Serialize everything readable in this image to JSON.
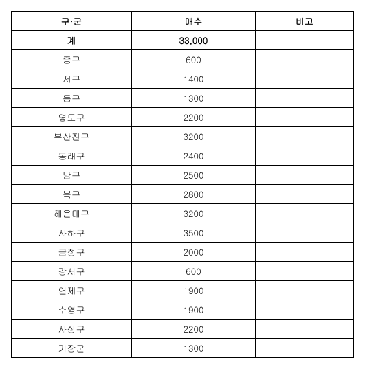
{
  "table": {
    "columns": [
      {
        "key": "district",
        "label": "구·군"
      },
      {
        "key": "count",
        "label": "매수"
      },
      {
        "key": "note",
        "label": "비고"
      }
    ],
    "total": {
      "district": "계",
      "count": "33,000",
      "note": ""
    },
    "rows": [
      {
        "district": "중구",
        "count": "600",
        "note": ""
      },
      {
        "district": "서구",
        "count": "1400",
        "note": ""
      },
      {
        "district": "동구",
        "count": "1300",
        "note": ""
      },
      {
        "district": "영도구",
        "count": "2200",
        "note": ""
      },
      {
        "district": "부산진구",
        "count": "3200",
        "note": ""
      },
      {
        "district": "동래구",
        "count": "2400",
        "note": ""
      },
      {
        "district": "남구",
        "count": "2500",
        "note": ""
      },
      {
        "district": "북구",
        "count": "2800",
        "note": ""
      },
      {
        "district": "해운대구",
        "count": "3200",
        "note": ""
      },
      {
        "district": "사하구",
        "count": "3500",
        "note": ""
      },
      {
        "district": "금정구",
        "count": "2000",
        "note": ""
      },
      {
        "district": "강서구",
        "count": "600",
        "note": ""
      },
      {
        "district": "연제구",
        "count": "1900",
        "note": ""
      },
      {
        "district": "수영구",
        "count": "1900",
        "note": ""
      },
      {
        "district": "사상구",
        "count": "2200",
        "note": ""
      },
      {
        "district": "기장군",
        "count": "1300",
        "note": ""
      }
    ]
  }
}
